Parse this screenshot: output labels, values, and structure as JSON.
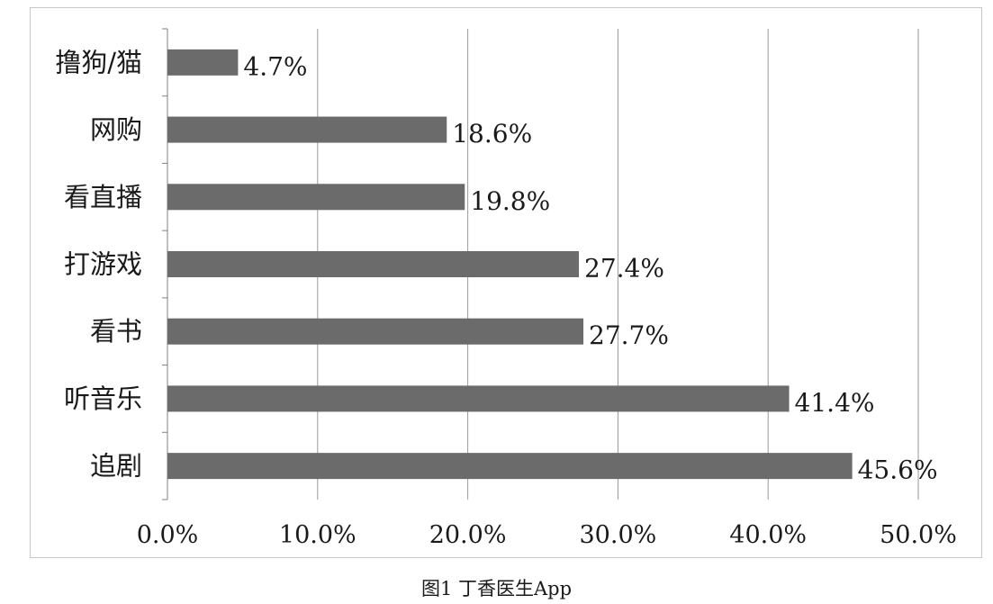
{
  "caption": "图1 丁香医生App",
  "colors": {
    "bar": "#6b6b6b",
    "grid": "#9a9a9a",
    "axis": "#808080"
  },
  "chart_data": {
    "type": "bar",
    "orientation": "horizontal",
    "categories": [
      "撸狗/猫",
      "网购",
      "看直播",
      "打游戏",
      "看书",
      "听音乐",
      "追剧"
    ],
    "values": [
      4.7,
      18.6,
      19.8,
      27.4,
      27.7,
      41.4,
      45.6
    ],
    "data_labels": [
      "4.7%",
      "18.6%",
      "19.8%",
      "27.4%",
      "27.7%",
      "41.4%",
      "45.6%"
    ],
    "x_ticks": [
      0,
      10,
      20,
      30,
      40,
      50
    ],
    "x_tick_labels": [
      "0.0%",
      "10.0%",
      "20.0%",
      "30.0%",
      "40.0%",
      "50.0%"
    ],
    "xlim": [
      0,
      50
    ],
    "title": "",
    "xlabel": "",
    "ylabel": "",
    "grid": "vertical",
    "legend": "none"
  }
}
